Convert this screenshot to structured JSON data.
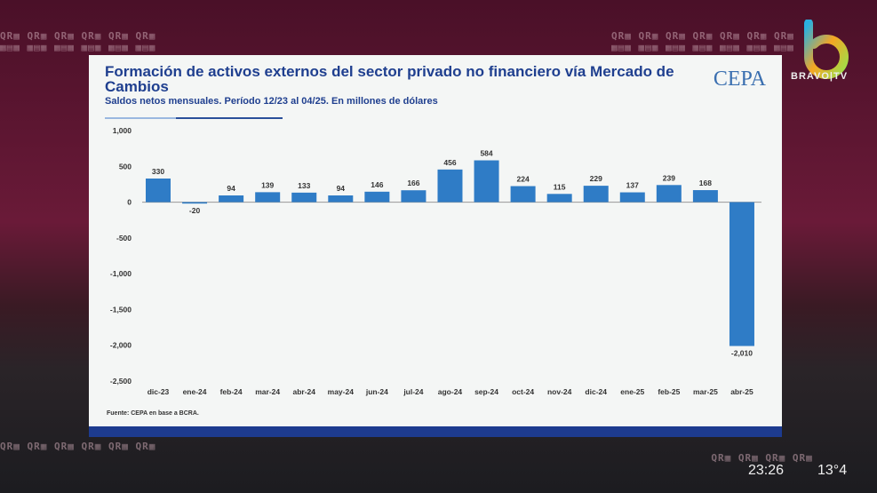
{
  "broadcast": {
    "channel": "BRAVO|TV",
    "time": "23:26",
    "temperature": "13°4"
  },
  "chart_data": {
    "type": "bar",
    "title": "Formación  de activos externos del sector privado no financiero vía Mercado de Cambios",
    "subtitle": "Saldos netos mensuales. Período 12/23 al 04/25. En millones de dólares",
    "source": "Fuente: CEPA en base a BCRA.",
    "logo": "CEPA",
    "categories": [
      "dic-23",
      "ene-24",
      "feb-24",
      "mar-24",
      "abr-24",
      "may-24",
      "jun-24",
      "jul-24",
      "ago-24",
      "sep-24",
      "oct-24",
      "nov-24",
      "dic-24",
      "ene-25",
      "feb-25",
      "mar-25",
      "abr-25"
    ],
    "values": [
      330,
      -20,
      94,
      139,
      133,
      94,
      146,
      166,
      456,
      584,
      224,
      115,
      229,
      137,
      239,
      168,
      -2010
    ],
    "value_labels": [
      "330",
      "-20",
      "94",
      "139",
      "133",
      "94",
      "146",
      "166",
      "456",
      "584",
      "224",
      "115",
      "229",
      "137",
      "239",
      "168",
      "-2,010"
    ],
    "yticks": [
      "1,000",
      "500",
      "0",
      "-500",
      "-1,000",
      "-1,500",
      "-2,000",
      "-2,500"
    ],
    "ytick_values": [
      1000,
      500,
      0,
      -500,
      -1000,
      -1500,
      -2000,
      -2500
    ],
    "ylim": [
      -2500,
      1000
    ],
    "bar_color": "#2f7cc6",
    "grid": false
  }
}
